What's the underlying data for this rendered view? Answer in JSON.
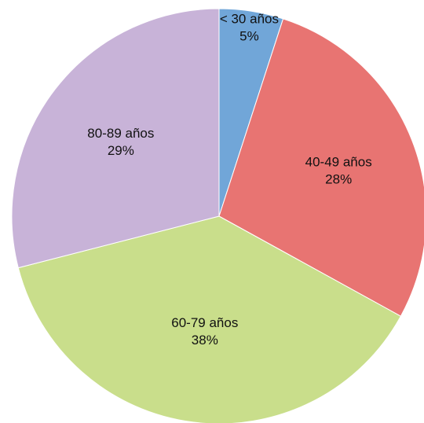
{
  "chart_data": {
    "type": "pie",
    "slices": [
      {
        "label": "< 30 años",
        "value": 5,
        "value_label": "5%",
        "color": "#71a6d8"
      },
      {
        "label": "40-49 años",
        "value": 28,
        "value_label": "28%",
        "color": "#e87472"
      },
      {
        "label": "60-79 años",
        "value": 38,
        "value_label": "38%",
        "color": "#c9de8b"
      },
      {
        "label": "80-89 años",
        "value": 29,
        "value_label": "29%",
        "color": "#c8b3d8"
      }
    ],
    "start_angle": "12 o'clock",
    "direction": "clockwise",
    "legend": "none"
  }
}
